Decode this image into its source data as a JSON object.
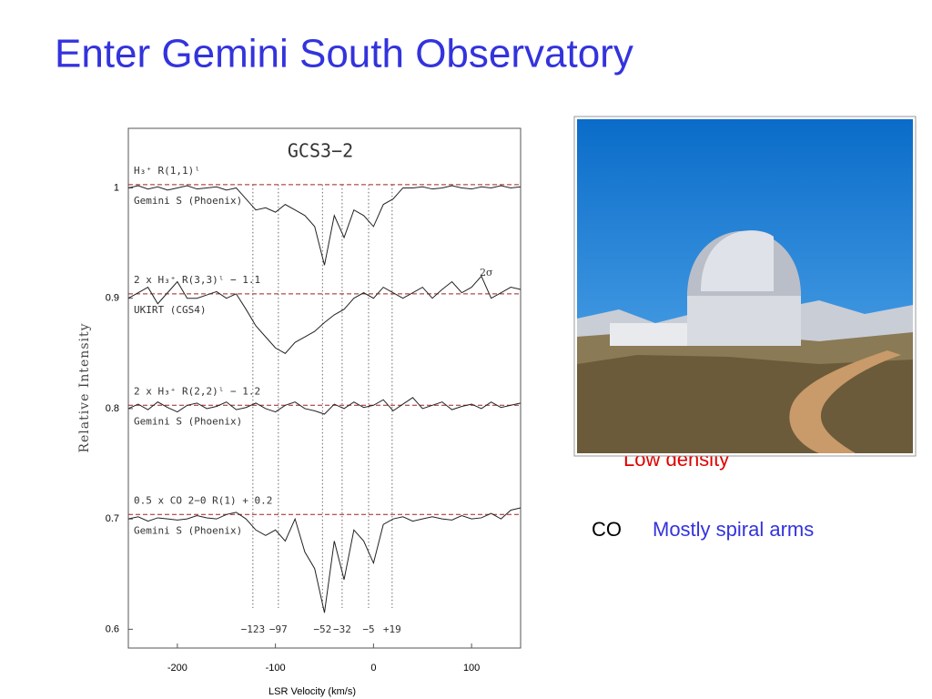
{
  "slide": {
    "title": "Enter Gemini South Observatory",
    "low_density": "Low density",
    "co_label": "CO",
    "co_note": "Mostly spiral arms"
  },
  "chart_data": {
    "type": "line",
    "title": "GCS3−2",
    "xlabel": "LSR Velocity (km/s)",
    "ylabel": "Relative Intensity",
    "xlim": [
      -250,
      150
    ],
    "ylim": [
      0.583,
      1.054
    ],
    "xticks": [
      -200,
      -100,
      0,
      100
    ],
    "yticks": [
      0.6,
      0.7,
      0.8,
      0.9,
      1
    ],
    "x": [
      -250,
      -240,
      -230,
      -220,
      -210,
      -200,
      -190,
      -180,
      -170,
      -160,
      -150,
      -140,
      -130,
      -120,
      -110,
      -100,
      -90,
      -80,
      -70,
      -60,
      -50,
      -40,
      -30,
      -20,
      -10,
      0,
      10,
      20,
      30,
      40,
      50,
      60,
      70,
      80,
      90,
      100,
      110,
      120,
      130,
      140,
      150
    ],
    "series": [
      {
        "name": "H₃⁺ R(1,1)ˡ",
        "instrument": "Gemini S (Phoenix)",
        "color": "#222222",
        "baseline": 1.003,
        "values": [
          1.0,
          1.002,
          0.999,
          1.001,
          0.998,
          1.0,
          1.002,
          0.999,
          1.0,
          1.001,
          0.998,
          1.0,
          0.99,
          0.98,
          0.982,
          0.978,
          0.985,
          0.98,
          0.975,
          0.965,
          0.93,
          0.975,
          0.955,
          0.98,
          0.975,
          0.965,
          0.985,
          0.99,
          1.0,
          1.0,
          1.001,
          0.999,
          1.0,
          1.002,
          1.0,
          0.999,
          1.001,
          1.0,
          1.002,
          1.0,
          1.001
        ]
      },
      {
        "name": "2 x H₃⁺ R(3,3)ˡ − 1.1",
        "instrument": "UKIRT (CGS4)",
        "color": "#222222",
        "baseline": 0.904,
        "values": [
          0.9,
          0.905,
          0.91,
          0.895,
          0.905,
          0.915,
          0.9,
          0.9,
          0.903,
          0.906,
          0.9,
          0.904,
          0.89,
          0.875,
          0.865,
          0.855,
          0.85,
          0.86,
          0.865,
          0.87,
          0.878,
          0.885,
          0.89,
          0.9,
          0.905,
          0.9,
          0.91,
          0.905,
          0.9,
          0.905,
          0.91,
          0.9,
          0.908,
          0.915,
          0.905,
          0.91,
          0.92,
          0.9,
          0.905,
          0.91,
          0.908
        ]
      },
      {
        "name": "2 x H₃⁺ R(2,2)ˡ − 1.2",
        "instrument": "Gemini S (Phoenix)",
        "color": "#222222",
        "baseline": 0.803,
        "values": [
          0.8,
          0.804,
          0.799,
          0.806,
          0.801,
          0.797,
          0.803,
          0.805,
          0.8,
          0.802,
          0.806,
          0.799,
          0.801,
          0.805,
          0.8,
          0.797,
          0.803,
          0.806,
          0.8,
          0.798,
          0.795,
          0.804,
          0.8,
          0.806,
          0.801,
          0.803,
          0.808,
          0.798,
          0.804,
          0.81,
          0.8,
          0.803,
          0.806,
          0.799,
          0.802,
          0.804,
          0.8,
          0.806,
          0.801,
          0.803,
          0.805
        ]
      },
      {
        "name": "0.5 x CO 2−0 R(1) + 0.2",
        "instrument": "Gemini S (Phoenix)",
        "color": "#222222",
        "baseline": 0.704,
        "values": [
          0.7,
          0.702,
          0.698,
          0.701,
          0.7,
          0.699,
          0.7,
          0.703,
          0.701,
          0.7,
          0.704,
          0.706,
          0.7,
          0.69,
          0.685,
          0.69,
          0.68,
          0.7,
          0.67,
          0.655,
          0.615,
          0.68,
          0.645,
          0.69,
          0.68,
          0.66,
          0.695,
          0.7,
          0.702,
          0.698,
          0.7,
          0.702,
          0.7,
          0.699,
          0.703,
          0.7,
          0.701,
          0.705,
          0.7,
          0.708,
          0.71
        ]
      }
    ],
    "velocity_markers": [
      {
        "value": -123,
        "label": "−123"
      },
      {
        "value": -97,
        "label": "−97"
      },
      {
        "value": -52,
        "label": "−52"
      },
      {
        "value": -32,
        "label": "−32"
      },
      {
        "value": -5,
        "label": "−5"
      },
      {
        "value": 19,
        "label": "+19"
      }
    ],
    "annotation": "2σ"
  }
}
